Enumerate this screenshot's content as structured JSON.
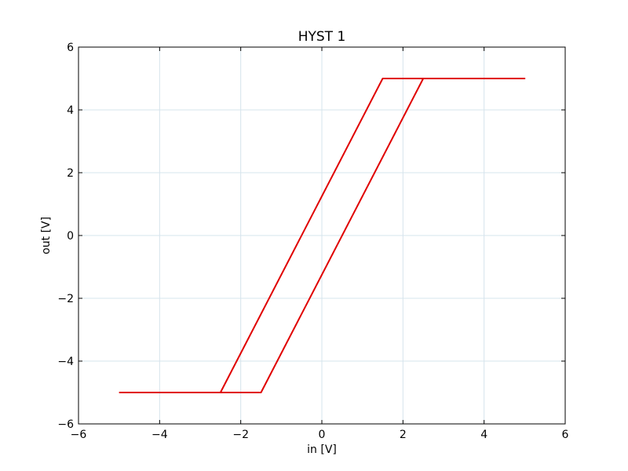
{
  "chart_data": {
    "type": "line",
    "title": "HYST 1",
    "xlabel": "in [V]",
    "ylabel": "out [V]",
    "xlim": [
      -6,
      6
    ],
    "ylim": [
      -6,
      6
    ],
    "xticks": [
      -6,
      -4,
      -2,
      0,
      2,
      4,
      6
    ],
    "yticks": [
      -6,
      -4,
      -2,
      0,
      2,
      4,
      6
    ],
    "xtick_labels": [
      "−6",
      "−4",
      "−2",
      "0",
      "2",
      "4",
      "6"
    ],
    "ytick_labels": [
      "−6",
      "−4",
      "−2",
      "0",
      "2",
      "4",
      "6"
    ],
    "grid": true,
    "colors": {
      "series": "#e00000",
      "grid": "#d6e4ec",
      "axes": "#000000"
    },
    "series": [
      {
        "x": [
          -5.0,
          -2.5,
          1.5,
          5.0,
          2.5,
          -1.5,
          -5.0
        ],
        "y": [
          -5.0,
          -5.0,
          5.0,
          5.0,
          5.0,
          -5.0,
          -5.0
        ]
      }
    ]
  }
}
